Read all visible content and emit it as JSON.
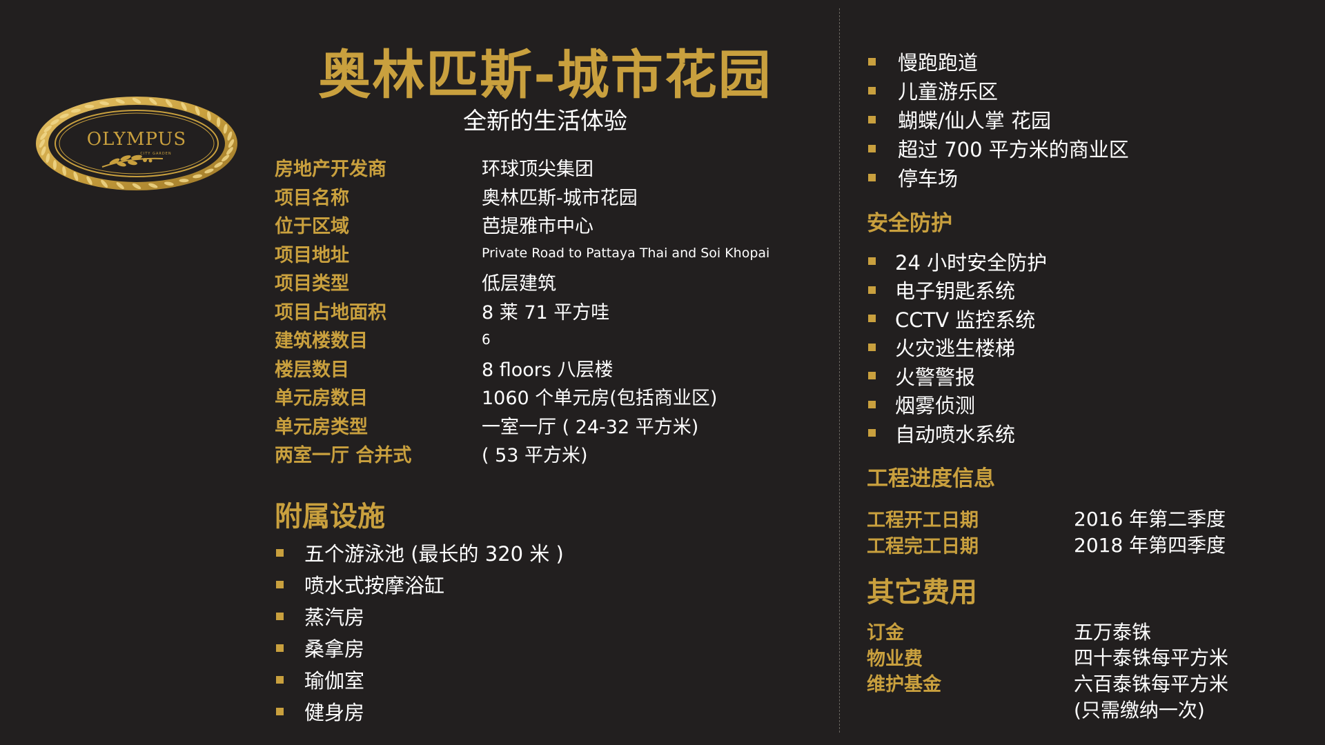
{
  "logo": {
    "brand": "OLYMPUS",
    "tagline": "CITY GARDEN",
    "icon": "laurel-wreath-icon"
  },
  "header": {
    "title": "奥林匹斯-城市花园",
    "subtitle": "全新的生活体验"
  },
  "info": [
    {
      "label": "房地产开发商",
      "value": "环球顶尖集团"
    },
    {
      "label": "项目名称",
      "value": "奥林匹斯-城市花园"
    },
    {
      "label": "位于区域",
      "value": "芭提雅市中心"
    },
    {
      "label": "项目地址",
      "value": "Private Road to Pattaya Thai and Soi Khopai"
    },
    {
      "label": "项目类型",
      "value": "低层建筑"
    },
    {
      "label": "项目占地面积",
      "value": "8 莱 71 平方哇"
    },
    {
      "label": "建筑楼数目",
      "value": "6"
    },
    {
      "label": "楼层数目",
      "value": "8 floors 八层楼"
    },
    {
      "label": "单元房数目",
      "value": "1060 个单元房(包括商业区)"
    },
    {
      "label": "单元房类型",
      "value": "一室一厅 ( 24-32 平方米)"
    },
    {
      "label": "两室一厅 合并式",
      "value": "( 53 平方米)"
    }
  ],
  "facilities": {
    "heading": "附属设施",
    "items": [
      "五个游泳池 (最长的 320 米 )",
      "喷水式按摩浴缸",
      "蒸汽房",
      "桑拿房",
      "瑜伽室",
      "健身房"
    ]
  },
  "amenities": {
    "items": [
      "慢跑跑道",
      "儿童游乐区",
      "蝴蝶/仙人掌 花园",
      "超过 700 平方米的商业区",
      "停车场"
    ]
  },
  "security": {
    "heading": "安全防护",
    "items": [
      "24 小时安全防护",
      "电子钥匙系统",
      "CCTV 监控系统",
      "火灾逃生楼梯",
      "火警警报",
      "烟雾侦测",
      "自动喷水系统"
    ]
  },
  "progress": {
    "heading": "工程进度信息",
    "rows": [
      {
        "label": "工程开工日期",
        "value": "2016 年第二季度"
      },
      {
        "label": "工程完工日期",
        "value": "2018 年第四季度"
      }
    ]
  },
  "fees": {
    "heading": "其它费用",
    "rows": [
      {
        "label": "订金",
        "value": "五万泰铢"
      },
      {
        "label": "物业费",
        "value": "四十泰铢每平方米"
      },
      {
        "label": "维护基金",
        "value": "六百泰铢每平方米"
      }
    ],
    "note": "(只需缴纳一次)"
  },
  "colors": {
    "background": "#221f1f",
    "accent_gold": "#c9a03e",
    "text": "#ffffff"
  }
}
